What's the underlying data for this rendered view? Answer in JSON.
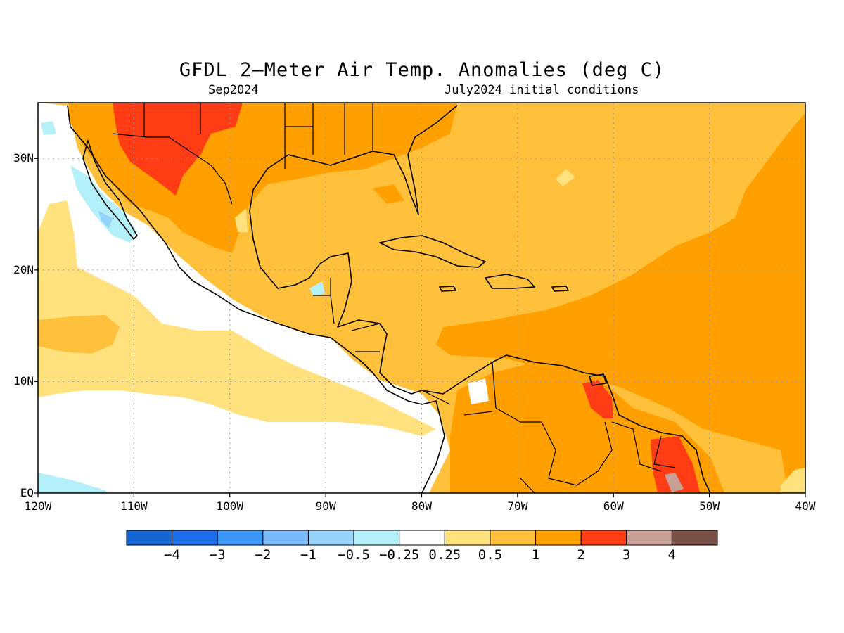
{
  "title": "GFDL 2—Meter Air Temp. Anomalies (deg C)",
  "subtitle_left": "Sep2024",
  "subtitle_right": "July2024 initial conditions",
  "lat_labels": [
    {
      "lat": 30,
      "text": "30N"
    },
    {
      "lat": 20,
      "text": "20N"
    },
    {
      "lat": 10,
      "text": "10N"
    },
    {
      "lat": 0,
      "text": "EQ"
    }
  ],
  "lon_labels": [
    {
      "lon": -120,
      "text": "120W"
    },
    {
      "lon": -110,
      "text": "110W"
    },
    {
      "lon": -100,
      "text": "100W"
    },
    {
      "lon": -90,
      "text": "90W"
    },
    {
      "lon": -80,
      "text": "80W"
    },
    {
      "lon": -70,
      "text": "70W"
    },
    {
      "lon": -60,
      "text": "60W"
    },
    {
      "lon": -50,
      "text": "50W"
    },
    {
      "lon": -40,
      "text": "40W"
    }
  ],
  "colorbar": {
    "colors": [
      "#1464d2",
      "#1e6eeb",
      "#3c96f5",
      "#78b9fa",
      "#96d2fa",
      "#b4f0fa",
      "#ffffff",
      "#ffe17d",
      "#ffc03c",
      "#ffa000",
      "#ff3c14",
      "#c8a096",
      "#785046"
    ],
    "labels": [
      "−4",
      "−3",
      "−2",
      "−1",
      "−0.5",
      "−0.25",
      "0.25",
      "0.5",
      "1",
      "2",
      "3",
      "4"
    ]
  },
  "legend_colors": {
    "ocean_pacific_neutral": "#ffffff",
    "anom_0_25_to_0_5": "#ffe17d",
    "anom_0_5_to_1": "#ffc03c",
    "anom_1_to_2": "#ffa000",
    "anom_2_to_3": "#ff3c14",
    "anom_3_to_4": "#c8a096",
    "anom_neg_0_25_to_0_5": "#b4f0fa"
  }
}
